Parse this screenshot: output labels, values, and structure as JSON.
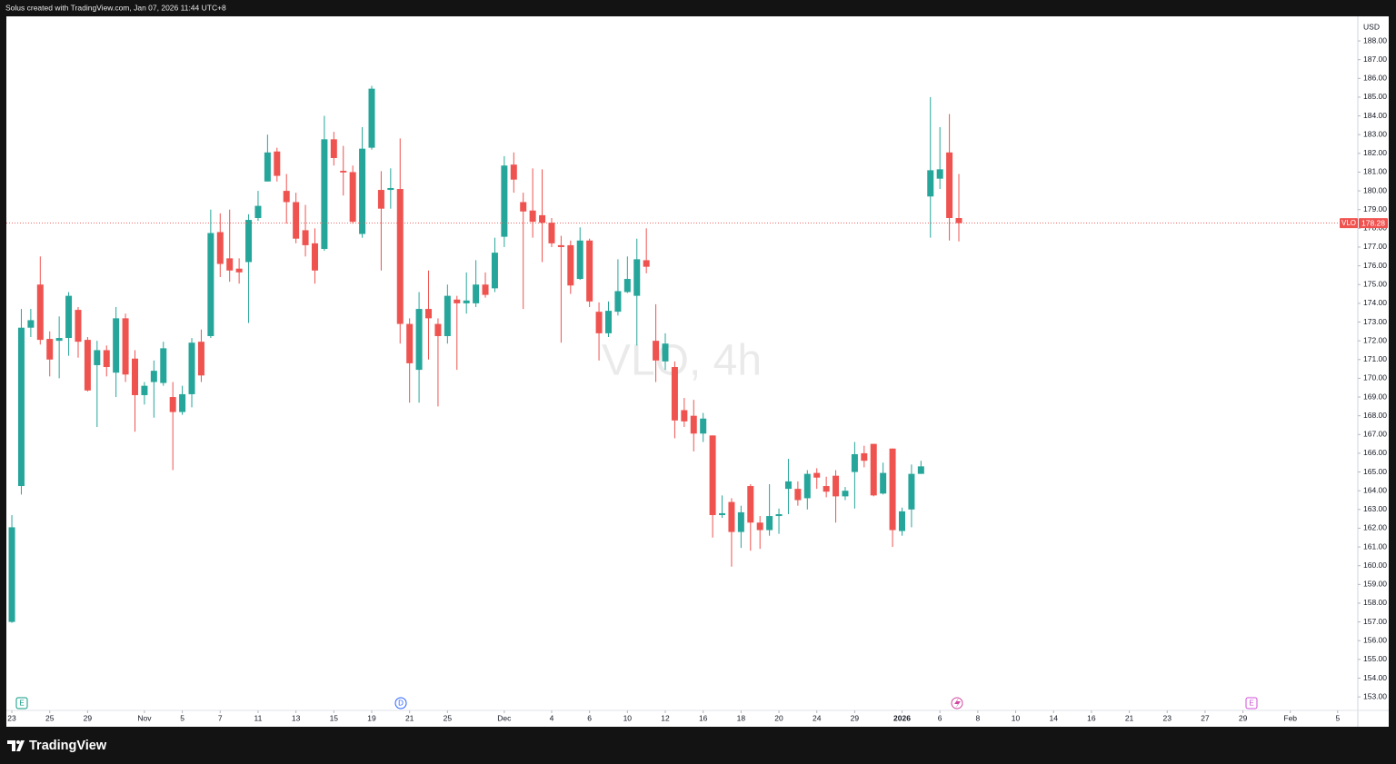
{
  "header": "Solus created with TradingView.com, Jan 07, 2026 11:44 UTC+8",
  "brand": "TradingView",
  "chart_data": {
    "type": "candlestick",
    "watermark": "VLO, 4h",
    "currency": "USD",
    "up_color": "#26a69a",
    "down_color": "#ef5350",
    "grid": false,
    "xlim": [
      -0.58,
      142.13
    ],
    "ylim": [
      152.28,
      189.31
    ],
    "series": [
      {
        "name": "VLO",
        "open": [
          157.0,
          164.25,
          172.7,
          175.0,
          172.1,
          172.0,
          172.15,
          173.65,
          172.05,
          170.7,
          171.5,
          170.3,
          173.2,
          171.05,
          169.1,
          169.8,
          169.75,
          169.0,
          168.2,
          169.15,
          171.95,
          172.25,
          177.8,
          176.4,
          175.85,
          176.2,
          178.55,
          180.5,
          182.1,
          180.0,
          179.4,
          177.9,
          177.2,
          176.9,
          182.75,
          181.07,
          181.0,
          177.7,
          182.3,
          180.05,
          180.05,
          180.1,
          172.9,
          170.45,
          173.7,
          172.9,
          172.25,
          174.2,
          174.0,
          174.0,
          175.0,
          174.8,
          177.55,
          181.4,
          179.4,
          178.95,
          178.7,
          178.3,
          177.1,
          177.1,
          175.3,
          177.35,
          173.55,
          172.4,
          173.55,
          174.6,
          174.4,
          176.3,
          172.0,
          170.9,
          170.6,
          168.3,
          168.0,
          167.05,
          166.95,
          162.7,
          163.4,
          161.8,
          164.25,
          162.3,
          161.9,
          162.65,
          164.1,
          164.1,
          163.6,
          164.95,
          164.25,
          164.8,
          163.7,
          165.0,
          166.0,
          166.5,
          163.85,
          166.25,
          161.85,
          163.0,
          164.9,
          179.7,
          180.65,
          182.05,
          178.55
        ],
        "high": [
          162.7,
          173.7,
          173.7,
          176.5,
          172.5,
          173.3,
          174.6,
          173.8,
          172.2,
          172.0,
          171.75,
          173.8,
          173.45,
          171.5,
          169.8,
          170.95,
          171.95,
          169.8,
          169.6,
          172.15,
          172.6,
          179.0,
          178.8,
          179.0,
          176.4,
          178.75,
          180.0,
          183.0,
          182.3,
          180.9,
          179.9,
          179.25,
          178.0,
          184.0,
          183.15,
          182.4,
          181.35,
          183.4,
          185.6,
          181.05,
          181.2,
          182.8,
          173.2,
          174.6,
          175.75,
          173.2,
          175.0,
          174.4,
          175.65,
          176.3,
          175.65,
          177.5,
          181.85,
          182.05,
          179.9,
          181.2,
          181.15,
          178.55,
          177.6,
          177.35,
          178.05,
          177.45,
          174.05,
          174.1,
          176.35,
          176.5,
          177.45,
          178.0,
          173.95,
          172.4,
          170.9,
          168.95,
          168.85,
          168.15,
          166.95,
          163.75,
          163.6,
          163.2,
          164.35,
          162.65,
          164.35,
          163.05,
          165.7,
          164.5,
          165.1,
          165.2,
          164.75,
          165.1,
          164.2,
          166.6,
          166.4,
          166.5,
          165.5,
          166.25,
          163.1,
          165.4,
          165.6,
          185.0,
          183.4,
          184.1,
          180.9
        ],
        "low": [
          156.95,
          163.8,
          172.2,
          171.8,
          170.1,
          170.0,
          171.2,
          171.1,
          169.3,
          167.4,
          170.1,
          169.0,
          169.8,
          167.15,
          168.6,
          167.9,
          169.6,
          165.1,
          168.05,
          168.45,
          169.8,
          172.15,
          175.4,
          175.15,
          175.05,
          172.95,
          178.4,
          180.5,
          180.5,
          178.25,
          177.2,
          176.5,
          175.05,
          176.8,
          181.35,
          179.75,
          178.25,
          177.5,
          182.2,
          175.75,
          179.05,
          171.85,
          168.7,
          168.7,
          171.0,
          168.5,
          171.85,
          170.45,
          173.45,
          173.8,
          174.3,
          174.6,
          177.0,
          179.9,
          173.7,
          177.5,
          176.2,
          177.0,
          171.9,
          174.5,
          175.25,
          173.8,
          170.95,
          172.2,
          173.35,
          174.55,
          171.75,
          175.6,
          169.8,
          170.45,
          166.8,
          167.4,
          166.1,
          166.6,
          161.5,
          162.55,
          159.95,
          160.95,
          160.8,
          160.9,
          161.6,
          161.7,
          162.75,
          163.2,
          163.0,
          164.1,
          163.65,
          162.3,
          163.5,
          163.05,
          165.25,
          163.7,
          163.8,
          161.0,
          161.6,
          162.05,
          164.9,
          177.5,
          180.1,
          177.35,
          177.3
        ],
        "close": [
          162.05,
          172.7,
          173.1,
          172.05,
          171.0,
          172.15,
          174.4,
          171.95,
          169.35,
          171.5,
          170.6,
          173.2,
          170.2,
          169.1,
          169.6,
          170.4,
          171.6,
          168.2,
          169.15,
          171.9,
          170.15,
          177.75,
          176.1,
          175.75,
          175.65,
          178.45,
          179.2,
          182.05,
          180.8,
          179.4,
          177.45,
          177.1,
          175.75,
          182.75,
          181.75,
          180.98,
          178.35,
          182.25,
          185.45,
          179.05,
          180.15,
          172.9,
          170.8,
          173.7,
          173.2,
          172.25,
          174.4,
          174.0,
          174.15,
          175.0,
          174.45,
          176.7,
          181.35,
          180.6,
          178.9,
          178.35,
          178.3,
          177.2,
          177.0,
          174.95,
          177.35,
          174.1,
          172.4,
          173.6,
          174.65,
          175.3,
          176.35,
          175.95,
          170.95,
          171.85,
          167.75,
          167.7,
          167.05,
          167.85,
          162.7,
          162.8,
          161.8,
          162.85,
          162.3,
          161.9,
          162.65,
          162.75,
          164.5,
          163.5,
          164.9,
          164.7,
          163.95,
          163.7,
          164.0,
          165.95,
          165.6,
          163.75,
          164.95,
          161.9,
          162.9,
          164.9,
          165.3,
          181.1,
          181.15,
          178.55,
          178.28
        ]
      }
    ],
    "last_price": {
      "symbol": "VLO",
      "value": 178.28,
      "color": "#ef5350"
    },
    "yticks": [
      {
        "value": 188,
        "label": "188.00"
      },
      {
        "value": 187,
        "label": "187.00"
      },
      {
        "value": 186,
        "label": "186.00"
      },
      {
        "value": 185,
        "label": "185.00"
      },
      {
        "value": 184,
        "label": "184.00"
      },
      {
        "value": 183,
        "label": "183.00"
      },
      {
        "value": 182,
        "label": "182.00"
      },
      {
        "value": 181,
        "label": "181.00"
      },
      {
        "value": 180,
        "label": "180.00"
      },
      {
        "value": 179,
        "label": "179.00"
      },
      {
        "value": 178,
        "label": "178.00"
      },
      {
        "value": 177,
        "label": "177.00"
      },
      {
        "value": 176,
        "label": "176.00"
      },
      {
        "value": 175,
        "label": "175.00"
      },
      {
        "value": 174,
        "label": "174.00"
      },
      {
        "value": 173,
        "label": "173.00"
      },
      {
        "value": 172,
        "label": "172.00"
      },
      {
        "value": 171,
        "label": "171.00"
      },
      {
        "value": 170,
        "label": "170.00"
      },
      {
        "value": 169,
        "label": "169.00"
      },
      {
        "value": 168,
        "label": "168.00"
      },
      {
        "value": 167,
        "label": "167.00"
      },
      {
        "value": 166,
        "label": "166.00"
      },
      {
        "value": 165,
        "label": "165.00"
      },
      {
        "value": 164,
        "label": "164.00"
      },
      {
        "value": 163,
        "label": "163.00"
      },
      {
        "value": 162,
        "label": "162.00"
      },
      {
        "value": 161,
        "label": "161.00"
      },
      {
        "value": 160,
        "label": "160.00"
      },
      {
        "value": 159,
        "label": "159.00"
      },
      {
        "value": 158,
        "label": "158.00"
      },
      {
        "value": 157,
        "label": "157.00"
      },
      {
        "value": 156,
        "label": "156.00"
      },
      {
        "value": 155,
        "label": "155.00"
      },
      {
        "value": 154,
        "label": "154.00"
      },
      {
        "value": 153,
        "label": "153.00"
      }
    ],
    "xticks": [
      {
        "value": 0,
        "label": "23"
      },
      {
        "value": 4,
        "label": "25"
      },
      {
        "value": 8,
        "label": "29"
      },
      {
        "value": 14,
        "label": "Nov"
      },
      {
        "value": 18,
        "label": "5"
      },
      {
        "value": 22,
        "label": "7"
      },
      {
        "value": 26,
        "label": "11"
      },
      {
        "value": 30,
        "label": "13"
      },
      {
        "value": 34,
        "label": "15"
      },
      {
        "value": 38,
        "label": "19"
      },
      {
        "value": 42,
        "label": "21"
      },
      {
        "value": 46,
        "label": "25"
      },
      {
        "value": 52,
        "label": "Dec"
      },
      {
        "value": 57,
        "label": "4"
      },
      {
        "value": 61,
        "label": "6"
      },
      {
        "value": 65,
        "label": "10"
      },
      {
        "value": 69,
        "label": "12"
      },
      {
        "value": 73,
        "label": "16"
      },
      {
        "value": 77,
        "label": "18"
      },
      {
        "value": 81,
        "label": "20"
      },
      {
        "value": 85,
        "label": "24"
      },
      {
        "value": 89,
        "label": "29"
      },
      {
        "value": 94,
        "label": "2026",
        "bold": true
      },
      {
        "value": 98,
        "label": "6"
      },
      {
        "value": 102,
        "label": "8"
      },
      {
        "value": 106,
        "label": "10"
      },
      {
        "value": 110,
        "label": "14"
      },
      {
        "value": 114,
        "label": "16"
      },
      {
        "value": 118,
        "label": "21"
      },
      {
        "value": 122,
        "label": "23"
      },
      {
        "value": 126,
        "label": "27"
      },
      {
        "value": 130,
        "label": "29"
      },
      {
        "value": 135,
        "label": "Feb"
      },
      {
        "value": 140,
        "label": "5"
      }
    ],
    "events": [
      {
        "label": "E"
      },
      {
        "label": "D"
      },
      {
        "label": "E"
      }
    ]
  }
}
